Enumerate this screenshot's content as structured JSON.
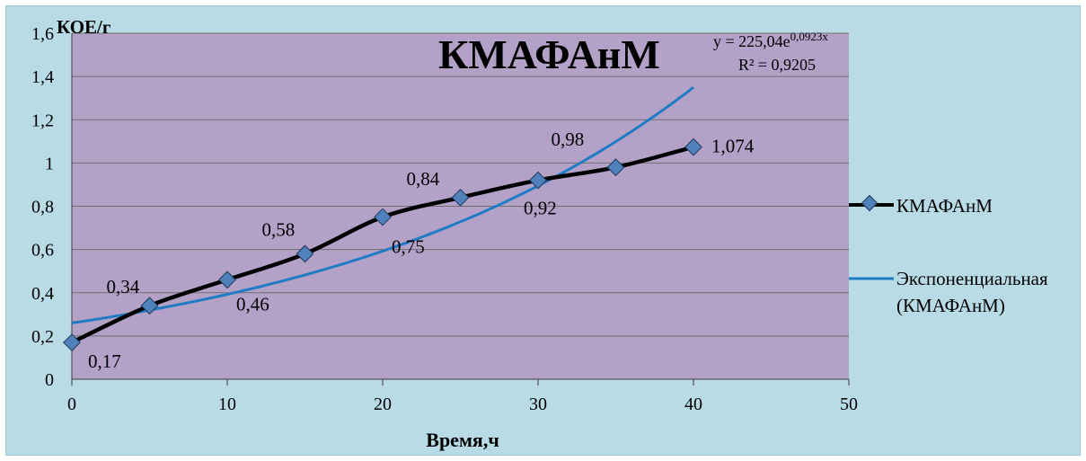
{
  "chart_data": {
    "type": "line",
    "title": "КМАФАнМ",
    "ylabel": "КОЕ/г",
    "xlabel": "Время,ч",
    "xlim": [
      0,
      50
    ],
    "ylim": [
      0,
      1.6
    ],
    "x_ticks": [
      "0",
      "10",
      "20",
      "30",
      "40",
      "50"
    ],
    "y_ticks": [
      "0",
      "0,2",
      "0,4",
      "0,6",
      "0,8",
      "1",
      "1,2",
      "1,4",
      "1,6"
    ],
    "grid": "horizontal",
    "legend_position": "right",
    "series": [
      {
        "name": "КМАФАнМ",
        "x": [
          0,
          5,
          10,
          15,
          20,
          25,
          30,
          35,
          40
        ],
        "y": [
          0.17,
          0.34,
          0.46,
          0.58,
          0.75,
          0.84,
          0.92,
          0.98,
          1.074
        ],
        "labels": [
          "0,17",
          "0,34",
          "0,46",
          "0,58",
          "0,75",
          "0,84",
          "0,92",
          "0,98",
          "1,074"
        ],
        "color": "#000000",
        "marker_color": "#4f81bd"
      },
      {
        "name": "Экспоненциальная (КМАФАнМ)",
        "legend_lines": [
          "Экспоненциальная",
          "(КМАФАнМ)"
        ],
        "type": "trendline-exponential",
        "x_range": [
          0,
          40
        ],
        "y_start": 0.26,
        "y_end": 1.35,
        "color": "#1f7cc4"
      }
    ],
    "annotations": {
      "equation_base": "y = 225,04e",
      "equation_exp": "0,0923x",
      "r2": "R² = 0,9205"
    }
  },
  "colors": {
    "background": "#b9dbe6",
    "plot_area": "#b3a1c8",
    "series_line": "#000000",
    "marker": "#4f81bd",
    "trendline": "#1f7cc4"
  }
}
